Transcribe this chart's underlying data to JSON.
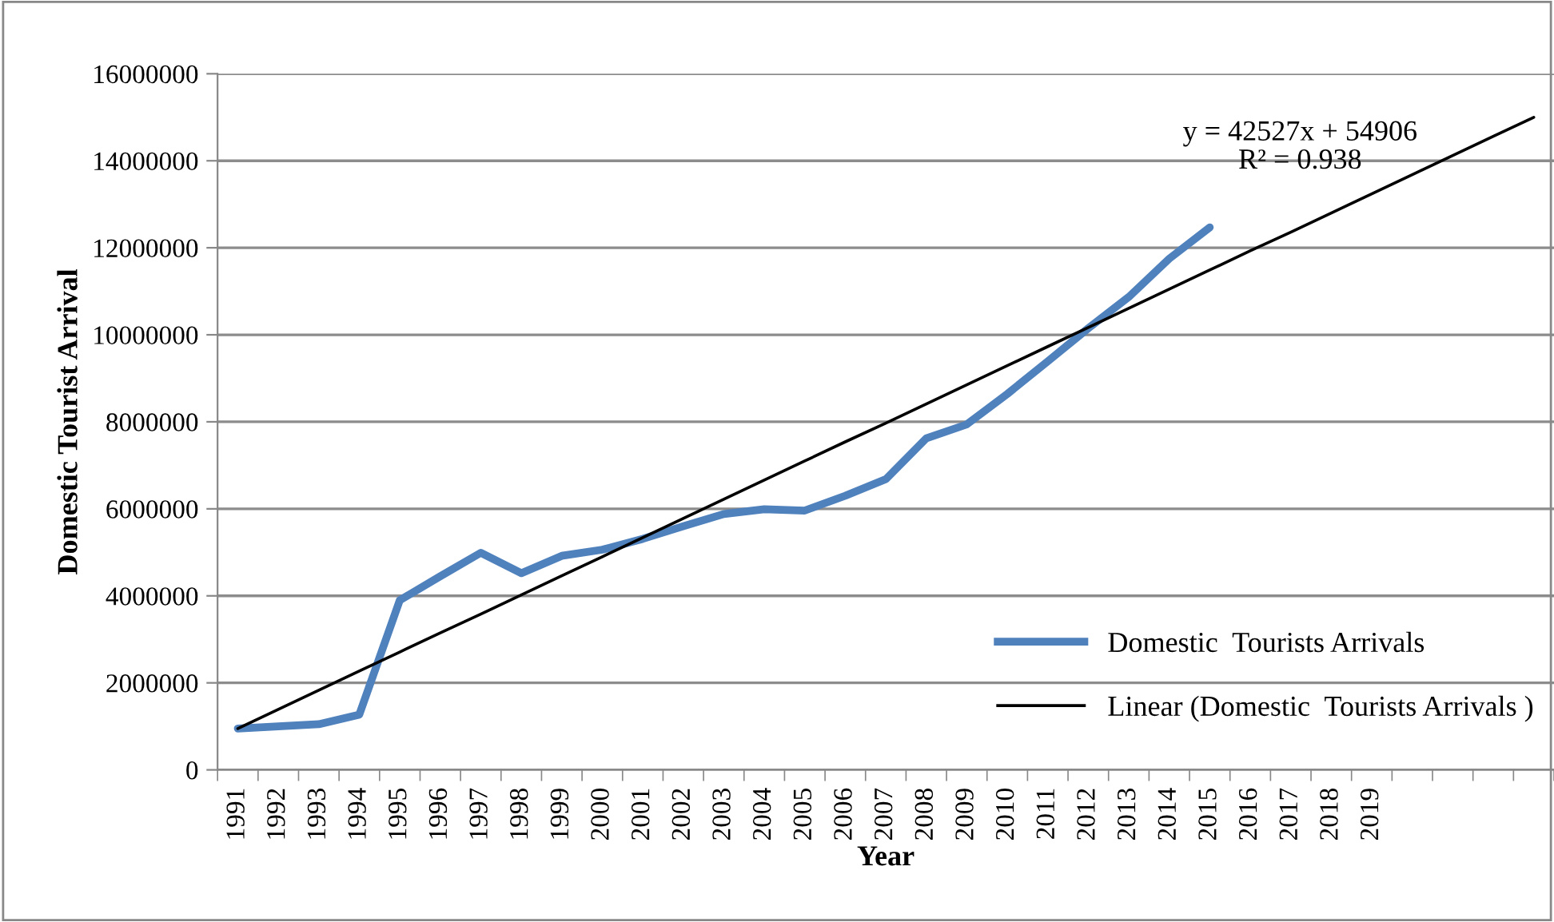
{
  "chart_data": {
    "type": "line",
    "xlabel": "Year",
    "ylabel": "Domestic Tourist Arrival",
    "categories": [
      "1991",
      "1992",
      "1993",
      "1994",
      "1995",
      "1996",
      "1997",
      "1998",
      "1999",
      "2000",
      "2001",
      "2002",
      "2003",
      "2004",
      "2005",
      "2006",
      "2007",
      "2008",
      "2009",
      "2010",
      "2011",
      "2012",
      "2013",
      "2014",
      "2015",
      "2016",
      "2017",
      "2018",
      "2019",
      null,
      null,
      null,
      null
    ],
    "series": [
      {
        "name": "Domestic  Tourists Arrivals",
        "color": "#4f81bd",
        "values": [
          950000,
          1000000,
          1050000,
          1270000,
          3900000,
          4450000,
          4990000,
          4520000,
          4920000,
          5060000,
          5310000,
          5600000,
          5880000,
          5990000,
          5960000,
          6300000,
          6680000,
          7620000,
          7940000,
          8640000,
          9390000,
          10150000,
          10870000,
          11750000,
          12470000,
          null,
          null,
          null,
          null,
          null,
          null,
          null,
          null
        ]
      },
      {
        "name": "Linear (Domestic  Tourists Arrivals )",
        "color": "#000000",
        "values": [
          950000,
          1390000,
          1830000,
          2270000,
          2710000,
          3150000,
          3580000,
          4020000,
          4460000,
          4900000,
          5340000,
          5780000,
          6220000,
          6660000,
          7100000,
          7540000,
          7970000,
          8410000,
          8850000,
          9290000,
          9730000,
          10170000,
          10610000,
          11050000,
          11490000,
          11930000,
          12360000,
          12800000,
          13240000,
          13680000,
          14120000,
          14560000,
          15000000
        ]
      }
    ],
    "ylim": [
      0,
      16000000
    ],
    "yticks": [
      0,
      2000000,
      4000000,
      6000000,
      8000000,
      10000000,
      12000000,
      14000000,
      16000000
    ],
    "grid": "y",
    "legend": "bottom right",
    "marker": "none",
    "line_style": "solid",
    "annotations": [
      "y = 42527x + 54906\nR² = 0.938"
    ]
  }
}
